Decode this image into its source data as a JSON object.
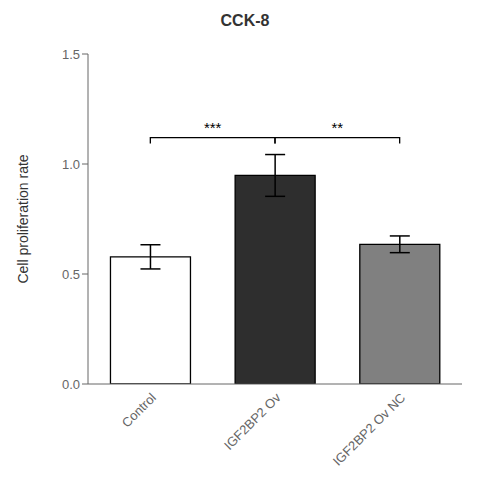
{
  "chart_data": {
    "type": "bar",
    "title": "CCK-8",
    "y_label": "Cell proliferation rate",
    "categories": [
      "Control",
      "IGF2BP2 Ov",
      "IGF2BP2 Ov NC"
    ],
    "values": [
      0.578,
      0.948,
      0.635
    ],
    "errors": [
      0.055,
      0.095,
      0.038
    ],
    "colors": [
      "#ffffff",
      "#2e2e2e",
      "#808080"
    ],
    "ylim": [
      0,
      1.5
    ],
    "yticks": [
      {
        "value": 0,
        "label": "0.0"
      },
      0.5,
      {
        "value": 1,
        "label": "1.0"
      },
      1.5
    ],
    "grid": false,
    "annotations": [
      {
        "text": "***",
        "x": [
          "Control",
          "IGF2BP2 Ov"
        ],
        "y": 1.12
      },
      {
        "text": "**",
        "x": [
          "IGF2BP2 Ov",
          "IGF2BP2 Ov NC"
        ],
        "y": 1.12
      }
    ]
  }
}
